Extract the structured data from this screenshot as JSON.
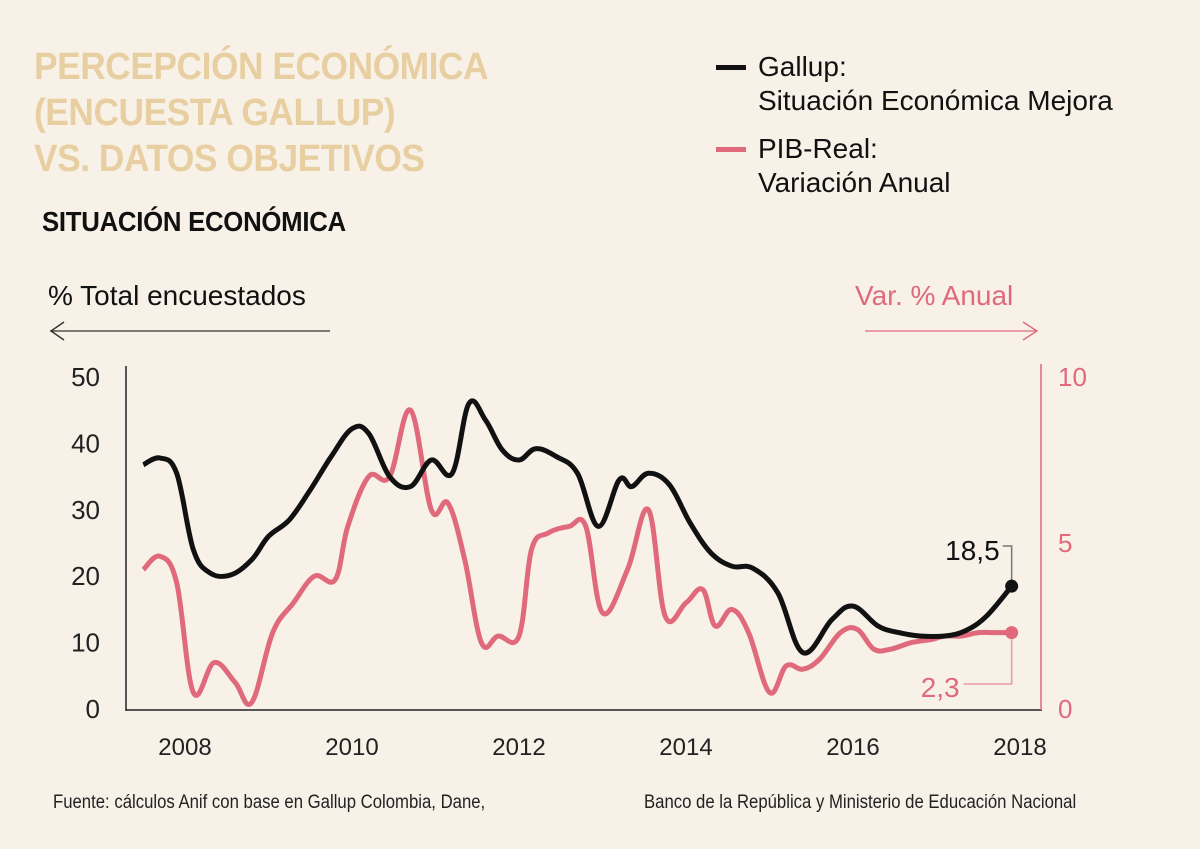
{
  "header": {
    "title_lines": [
      "PERCEPCIÓN ECONÓMICA",
      "(ENCUESTA GALLUP)",
      "VS. DATOS OBJETIVOS"
    ],
    "subtitle": "SITUACIÓN ECONÓMICA"
  },
  "legend": [
    {
      "label_line1": "Gallup:",
      "label_line2": "Situación Económica Mejora",
      "color": "#111111"
    },
    {
      "label_line1": "PIB-Real:",
      "label_line2": "Variación Anual",
      "color": "#e0697b"
    }
  ],
  "axis_titles": {
    "left": "% Total encuestados",
    "right": "Var. % Anual"
  },
  "source": {
    "part1": "Fuente: cálculos Anif con base en Gallup Colombia, Dane,",
    "part2": "Banco de la República y Ministerio de Educación Nacional"
  },
  "chart_data": {
    "type": "line",
    "title": "SITUACIÓN ECONÓMICA",
    "xlabel": "",
    "ylabel": "% Total encuestados",
    "y2label": "Var. % Anual",
    "xlim": [
      2007.5,
      2018.2
    ],
    "ylim": [
      0,
      50
    ],
    "y2lim": [
      0,
      10
    ],
    "x_ticks": [
      "2008",
      "2010",
      "2012",
      "2014",
      "2016",
      "2018"
    ],
    "y_ticks": [
      "0",
      "10",
      "20",
      "30",
      "40",
      "50"
    ],
    "y2_ticks": [
      "0",
      "5",
      "10"
    ],
    "grid": false,
    "legend_position": "top-right",
    "series": [
      {
        "name": "Gallup: Situación Económica Mejora",
        "axis": "left",
        "color": "#111111",
        "x": [
          2007.5,
          2007.7,
          2007.9,
          2008.1,
          2008.3,
          2008.55,
          2008.8,
          2009.0,
          2009.25,
          2009.5,
          2009.75,
          2010.0,
          2010.2,
          2010.45,
          2010.7,
          2010.95,
          2011.2,
          2011.4,
          2011.6,
          2011.8,
          2012.0,
          2012.2,
          2012.45,
          2012.7,
          2012.95,
          2013.2,
          2013.35,
          2013.55,
          2013.8,
          2014.05,
          2014.3,
          2014.55,
          2014.8,
          2015.1,
          2015.4,
          2015.75,
          2016.0,
          2016.3,
          2016.55,
          2016.8,
          2017.1,
          2017.35,
          2017.6,
          2017.9
        ],
        "values": [
          36.8,
          37.8,
          35.5,
          24.0,
          20.5,
          20.2,
          22.5,
          26.0,
          28.5,
          33.0,
          38.0,
          42.2,
          41.5,
          35.0,
          33.5,
          37.5,
          35.5,
          46.0,
          43.5,
          39.0,
          37.5,
          39.2,
          38.0,
          35.5,
          27.5,
          34.5,
          33.5,
          35.5,
          33.8,
          28.0,
          23.5,
          21.5,
          21.2,
          17.5,
          8.5,
          13.5,
          15.5,
          12.5,
          11.5,
          11.0,
          11.0,
          11.8,
          14.0,
          18.5
        ]
      },
      {
        "name": "PIB-Real: Variación Anual",
        "axis": "right",
        "color": "#e0697b",
        "x": [
          2007.5,
          2007.7,
          2007.9,
          2008.1,
          2008.35,
          2008.6,
          2008.8,
          2009.05,
          2009.3,
          2009.55,
          2009.8,
          2009.95,
          2010.2,
          2010.45,
          2010.7,
          2010.95,
          2011.15,
          2011.35,
          2011.55,
          2011.75,
          2012.0,
          2012.15,
          2012.35,
          2012.6,
          2012.8,
          2013.0,
          2013.3,
          2013.55,
          2013.75,
          2014.0,
          2014.2,
          2014.35,
          2014.55,
          2014.75,
          2015.0,
          2015.2,
          2015.4,
          2015.6,
          2015.85,
          2016.05,
          2016.25,
          2016.45,
          2016.7,
          2016.95,
          2017.1,
          2017.3,
          2017.5,
          2017.7,
          2017.9
        ],
        "values": [
          4.2,
          4.6,
          3.8,
          0.5,
          1.4,
          0.8,
          0.2,
          2.3,
          3.2,
          4.0,
          3.9,
          5.5,
          7.0,
          7.0,
          9.0,
          6.0,
          6.2,
          4.5,
          2.0,
          2.2,
          2.2,
          4.8,
          5.3,
          5.5,
          5.5,
          2.9,
          4.2,
          6.0,
          2.8,
          3.2,
          3.6,
          2.5,
          3.0,
          2.3,
          0.5,
          1.3,
          1.2,
          1.5,
          2.3,
          2.4,
          1.8,
          1.8,
          2.0,
          2.1,
          2.2,
          2.2,
          2.3,
          2.3,
          2.3
        ]
      }
    ],
    "annotations": [
      {
        "series": "Gallup: Situación Económica Mejora",
        "x": 2017.9,
        "value": 18.5,
        "label": "18,5"
      },
      {
        "series": "PIB-Real: Variación Anual",
        "x": 2017.9,
        "value": 2.3,
        "label": "2,3"
      }
    ]
  }
}
